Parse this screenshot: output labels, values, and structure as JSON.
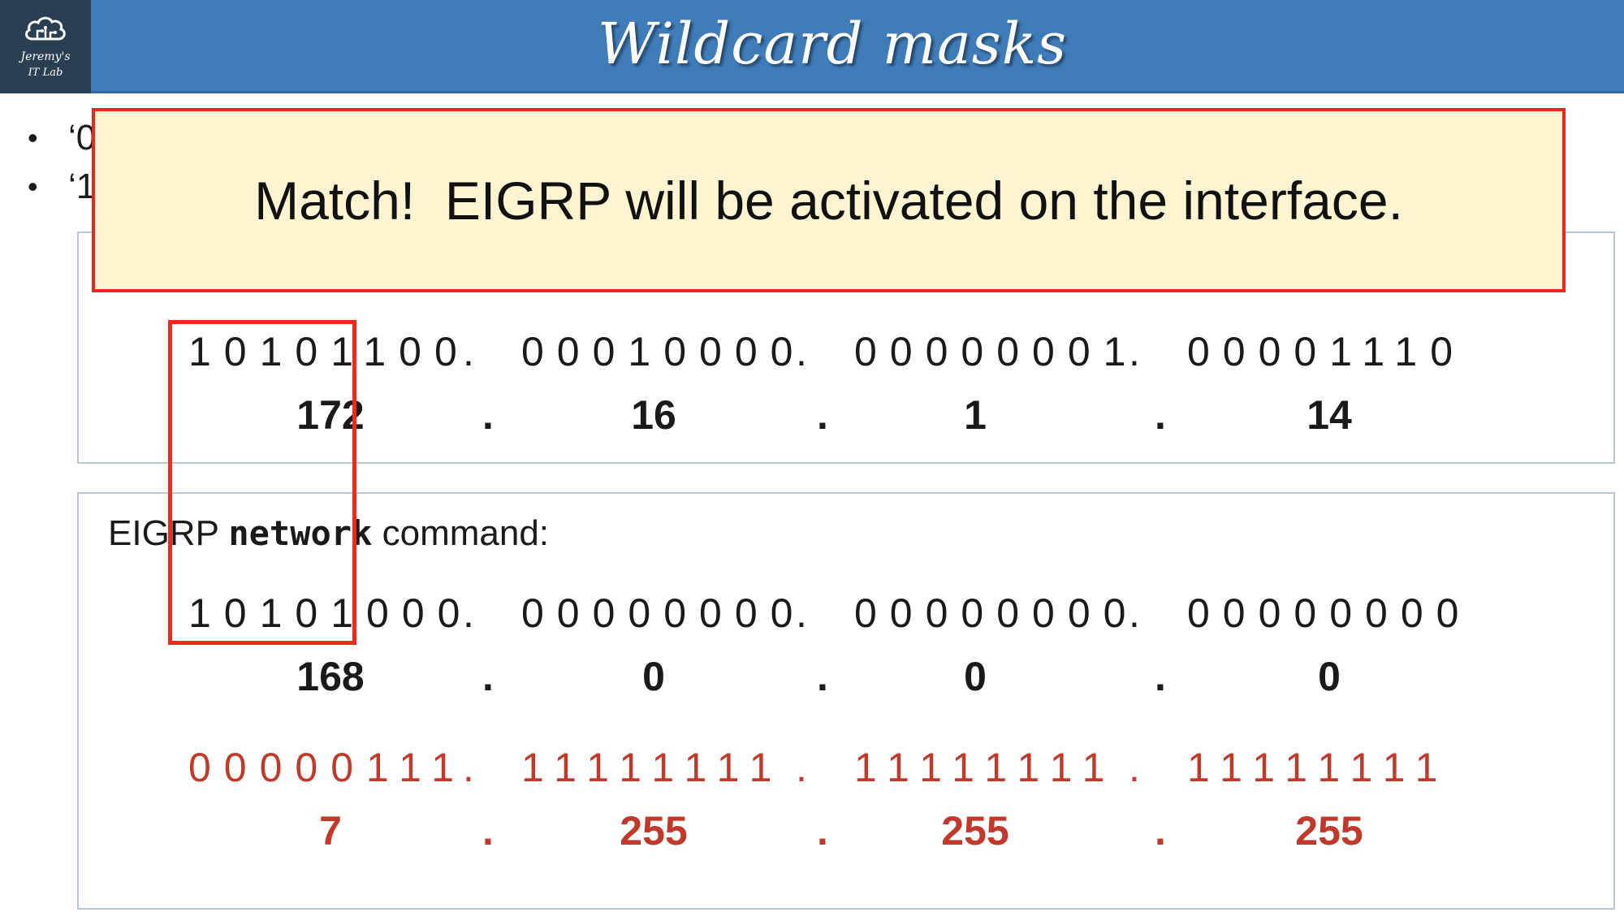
{
  "header": {
    "title": "Wildcard masks",
    "logo_line1": "Jeremy's",
    "logo_line2": "IT Lab"
  },
  "bullets": [
    {
      "text": "‘0"
    },
    {
      "text": "‘1"
    }
  ],
  "callout": {
    "text": "Match!  EIGRP will be activated on the interface."
  },
  "interface_address": {
    "binary": [
      "10101100",
      "00010000",
      "00000001",
      "00001110"
    ],
    "decimal": [
      "172",
      "16",
      "1",
      "14"
    ],
    "separator": "."
  },
  "network_command": {
    "label_prefix": "EIGRP ",
    "label_keyword": "network",
    "label_suffix": " command:",
    "network_binary": [
      "10101000",
      "00000000",
      "00000000",
      "00000000"
    ],
    "network_decimal": [
      "168",
      "0",
      "0",
      "0"
    ],
    "wildcard_binary": [
      "00000111",
      "11111111",
      "11111111",
      "11111111"
    ],
    "wildcard_decimal": [
      "7",
      "255",
      "255",
      "255"
    ]
  },
  "colors": {
    "header_bg": "#3f7cb9",
    "logo_bg": "#2a3f52",
    "callout_bg": "#fdf5d2",
    "callout_border": "#e8281d",
    "highlight_border": "#ee2a1b",
    "wildcard_text": "#c0392b"
  }
}
